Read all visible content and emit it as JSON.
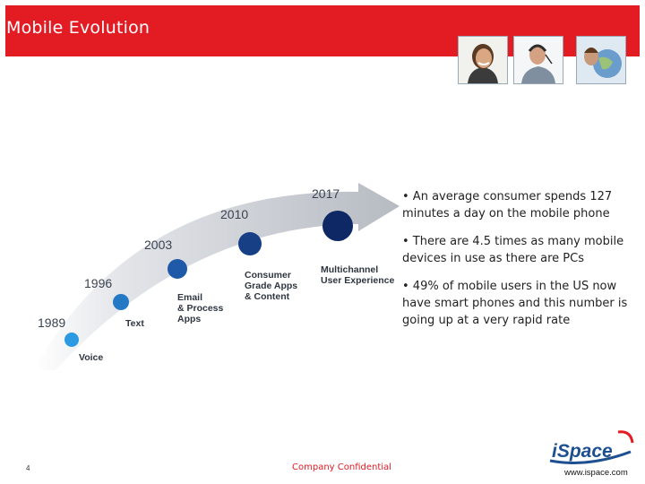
{
  "header": {
    "title": "Mobile Evolution"
  },
  "timeline": {
    "milestones": [
      {
        "year": "1989",
        "label": [
          "Voice"
        ],
        "color": "#2b9ae3"
      },
      {
        "year": "1996",
        "label": [
          "Text"
        ],
        "color": "#2479c4"
      },
      {
        "year": "2003",
        "label": [
          "Email",
          "& Process",
          "Apps"
        ],
        "color": "#1f5aa8"
      },
      {
        "year": "2010",
        "label": [
          "Consumer",
          "Grade Apps",
          "& Content"
        ],
        "color": "#163f86"
      },
      {
        "year": "2017",
        "label": [
          "Multichannel",
          "User Experience"
        ],
        "color": "#0e2866"
      }
    ]
  },
  "bullets": [
    "• An average consumer spends 127 minutes a day on the mobile phone",
    "• There are 4.5 times as many mobile devices in use as there are PCs",
    "• 49% of mobile users in the US now have smart phones and this number is going up at a very rapid rate"
  ],
  "footer": {
    "page_number": "4",
    "confidential": "Company Confidential",
    "logo_text": "iSpace",
    "url": "www.ispace.com"
  }
}
